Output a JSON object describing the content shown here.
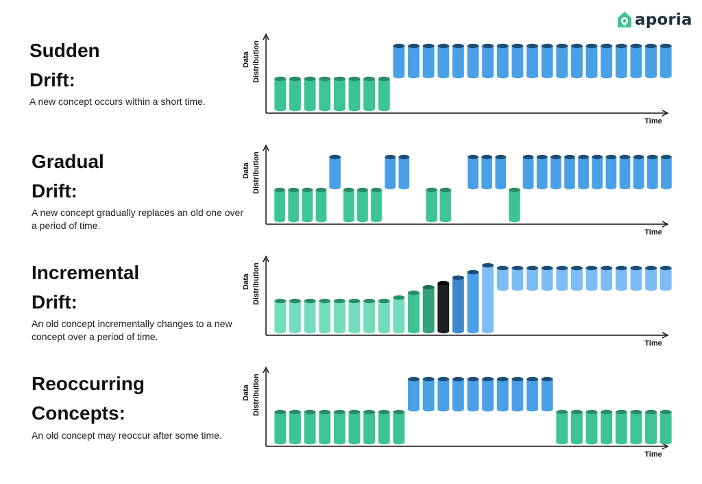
{
  "brand": {
    "name": "aporia"
  },
  "colors": {
    "green": "#3cc494",
    "green_top": "#2a8c67",
    "blue": "#4aa0e6",
    "blue_top": "#1c4f78",
    "light_green": "#72dcbc",
    "light_blue": "#7dbdf5",
    "dark_green": "#33a27a",
    "black": "#1c1f24",
    "mid_blue": "#3d88c8"
  },
  "axis_labels": {
    "y_line1": "Data",
    "y_line2": "Distribution",
    "x": "Time"
  },
  "sections": [
    {
      "title_line1": "Sudden",
      "title_line2": "Drift:",
      "description": "A new concept occurs within a short time.",
      "bars": [
        "gL",
        "gL",
        "gL",
        "gL",
        "gL",
        "gL",
        "gL",
        "gL",
        "bH",
        "bH",
        "bH",
        "bH",
        "bH",
        "bH",
        "bH",
        "bH",
        "bH",
        "bH",
        "bH",
        "bH",
        "bH",
        "bH",
        "bH",
        "bH",
        "bH",
        "bH",
        "bH"
      ]
    },
    {
      "title_line1": "Gradual",
      "title_line2": "Drift:",
      "description": "A new concept gradually replaces an old one over a period of time.",
      "bars": [
        "gL",
        "gL",
        "gL",
        "gL",
        "bH-thin",
        "gL",
        "gL",
        "gL",
        "bH",
        "bH",
        "",
        "gL-thin",
        "gL-thin",
        "",
        "bH",
        "bH",
        "bH",
        "gL-thin",
        "bH",
        "bH",
        "bH",
        "bH",
        "bH",
        "bH",
        "bH",
        "bH",
        "bH",
        "bH",
        "bH"
      ]
    },
    {
      "title_line1": "Incremental",
      "title_line2": "Drift:",
      "description": "An old concept incrementally changes to a new concept over a period of time.",
      "bars": [
        "lgL",
        "lgL",
        "lgL",
        "lgL",
        "lgL",
        "lgL",
        "lgL",
        "lgL",
        "lgR1",
        "gR2",
        "dgR3",
        "kR4",
        "mbR5",
        "bR6",
        "lbR7",
        "lbH",
        "lbH",
        "lbH",
        "lbH",
        "lbH",
        "lbH",
        "lbH",
        "lbH",
        "lbH",
        "lbH",
        "lbH",
        "lbH"
      ]
    },
    {
      "title_line1": "Reoccurring",
      "title_line2": "Concepts:",
      "description": "An old concept may reoccur after some time.",
      "bars": [
        "gL",
        "gL",
        "gL",
        "gL",
        "gL",
        "gL",
        "gL",
        "gL",
        "gL",
        "bH",
        "bH",
        "bH",
        "bH",
        "bH",
        "bH",
        "bH",
        "bH",
        "bH",
        "bH",
        "gL",
        "gL",
        "gL",
        "gL",
        "gL",
        "gL",
        "gL",
        "gL"
      ]
    }
  ]
}
